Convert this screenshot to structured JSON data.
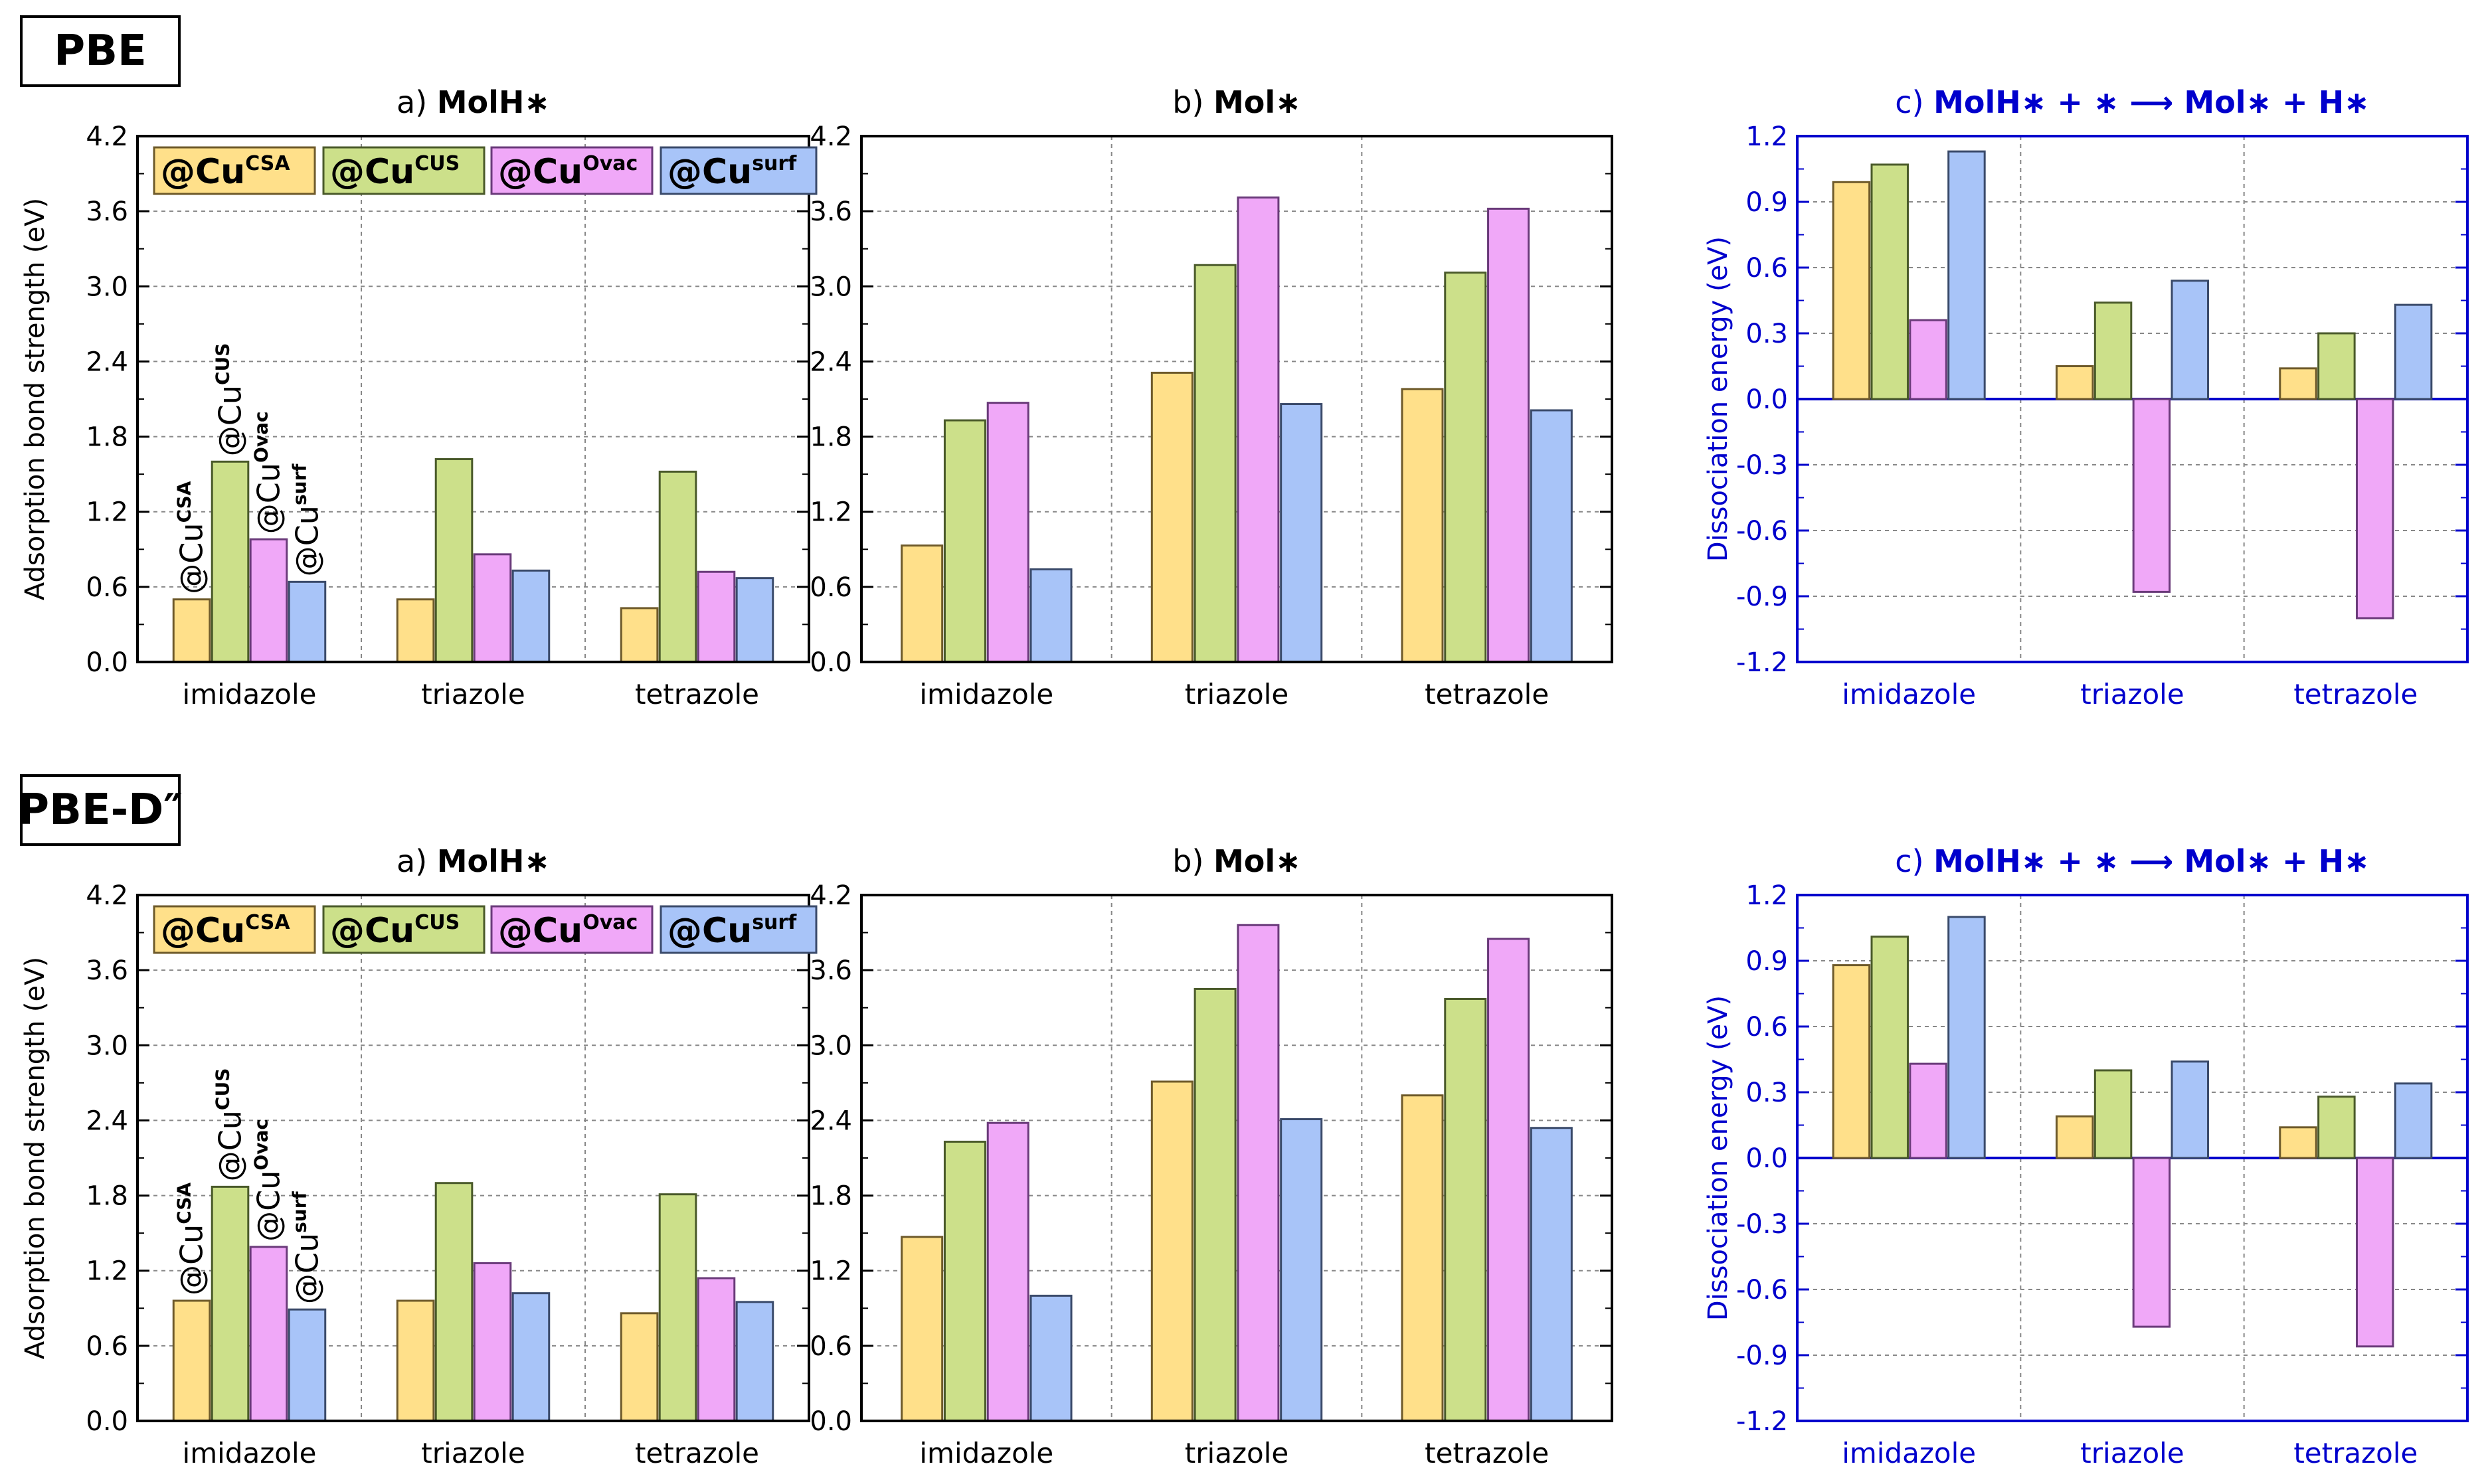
{
  "categories": [
    "imidazole",
    "triazole",
    "tetrazole"
  ],
  "series": [
    {
      "name": "@CuCSA",
      "sup": "CSA",
      "fill": "#ffe08a",
      "stroke": "#6e5a2a"
    },
    {
      "name": "@CuCUS",
      "sup": "CUS",
      "fill": "#cce08a",
      "stroke": "#4a5a2a"
    },
    {
      "name": "@CuOvac",
      "sup": "Ovac",
      "fill": "#f0a8f8",
      "stroke": "#6a3a7a"
    },
    {
      "name": "@Cusurf",
      "sup": "surf",
      "fill": "#a8c4f8",
      "stroke": "#3a4a6a"
    }
  ],
  "legend_prefix": "@Cu",
  "ylabel_a": "Adsorption bond strength (eV)",
  "ylabel_c": "Dissociation energy (eV)",
  "rows": [
    {
      "label": "PBE",
      "panels": [
        {
          "prefix": "a) ",
          "bold": "MolH∗"
        },
        {
          "prefix": "b) ",
          "bold": "Mol∗"
        },
        {
          "prefix": "c) ",
          "bold": "MolH∗ + ∗ ⟶ Mol∗ + H∗"
        }
      ]
    },
    {
      "label": "PBE-D″",
      "panels": [
        {
          "prefix": "a) ",
          "bold": "MolH∗"
        },
        {
          "prefix": "b) ",
          "bold": "Mol∗"
        },
        {
          "prefix": "c) ",
          "bold": "MolH∗ + ∗ ⟶ Mol∗ + H∗"
        }
      ]
    }
  ],
  "chart_data": [
    {
      "type": "bar",
      "method": "PBE",
      "panel": "a",
      "ylim": [
        0,
        4.2
      ],
      "yticks": [
        "0.0",
        "0.6",
        "1.2",
        "1.8",
        "2.4",
        "3.0",
        "3.6",
        "4.2"
      ],
      "values": [
        [
          0.5,
          1.6,
          0.98,
          0.64
        ],
        [
          0.5,
          1.62,
          0.86,
          0.73
        ],
        [
          0.43,
          1.52,
          0.72,
          0.67
        ]
      ]
    },
    {
      "type": "bar",
      "method": "PBE",
      "panel": "b",
      "ylim": [
        0,
        4.2
      ],
      "yticks": [
        "0.0",
        "0.6",
        "1.2",
        "1.8",
        "2.4",
        "3.0",
        "3.6",
        "4.2"
      ],
      "values": [
        [
          0.93,
          1.93,
          2.07,
          0.74
        ],
        [
          2.31,
          3.17,
          3.71,
          2.06
        ],
        [
          2.18,
          3.11,
          3.62,
          2.01
        ]
      ]
    },
    {
      "type": "bar",
      "method": "PBE",
      "panel": "c",
      "ylim": [
        -1.2,
        1.2
      ],
      "yticks": [
        "-1.2",
        "-0.9",
        "-0.6",
        "-0.3",
        "0.0",
        "0.3",
        "0.6",
        "0.9",
        "1.2"
      ],
      "values": [
        [
          0.99,
          1.07,
          0.36,
          1.13
        ],
        [
          0.15,
          0.44,
          -0.88,
          0.54
        ],
        [
          0.14,
          0.3,
          -1.0,
          0.43
        ]
      ]
    },
    {
      "type": "bar",
      "method": "PBE-D″",
      "panel": "a",
      "ylim": [
        0,
        4.2
      ],
      "yticks": [
        "0.0",
        "0.6",
        "1.2",
        "1.8",
        "2.4",
        "3.0",
        "3.6",
        "4.2"
      ],
      "values": [
        [
          0.96,
          1.87,
          1.39,
          0.89
        ],
        [
          0.96,
          1.9,
          1.26,
          1.02
        ],
        [
          0.86,
          1.81,
          1.14,
          0.95
        ]
      ]
    },
    {
      "type": "bar",
      "method": "PBE-D″",
      "panel": "b",
      "ylim": [
        0,
        4.2
      ],
      "yticks": [
        "0.0",
        "0.6",
        "1.2",
        "1.8",
        "2.4",
        "3.0",
        "3.6",
        "4.2"
      ],
      "values": [
        [
          1.47,
          2.23,
          2.38,
          1.0
        ],
        [
          2.71,
          3.45,
          3.96,
          2.41
        ],
        [
          2.6,
          3.37,
          3.85,
          2.34
        ]
      ]
    },
    {
      "type": "bar",
      "method": "PBE-D″",
      "panel": "c",
      "ylim": [
        -1.2,
        1.2
      ],
      "yticks": [
        "-1.2",
        "-0.9",
        "-0.6",
        "-0.3",
        "0.0",
        "0.3",
        "0.6",
        "0.9",
        "1.2"
      ],
      "values": [
        [
          0.88,
          1.01,
          0.43,
          1.1
        ],
        [
          0.19,
          0.4,
          -0.77,
          0.44
        ],
        [
          0.14,
          0.28,
          -0.86,
          0.34
        ]
      ]
    }
  ]
}
